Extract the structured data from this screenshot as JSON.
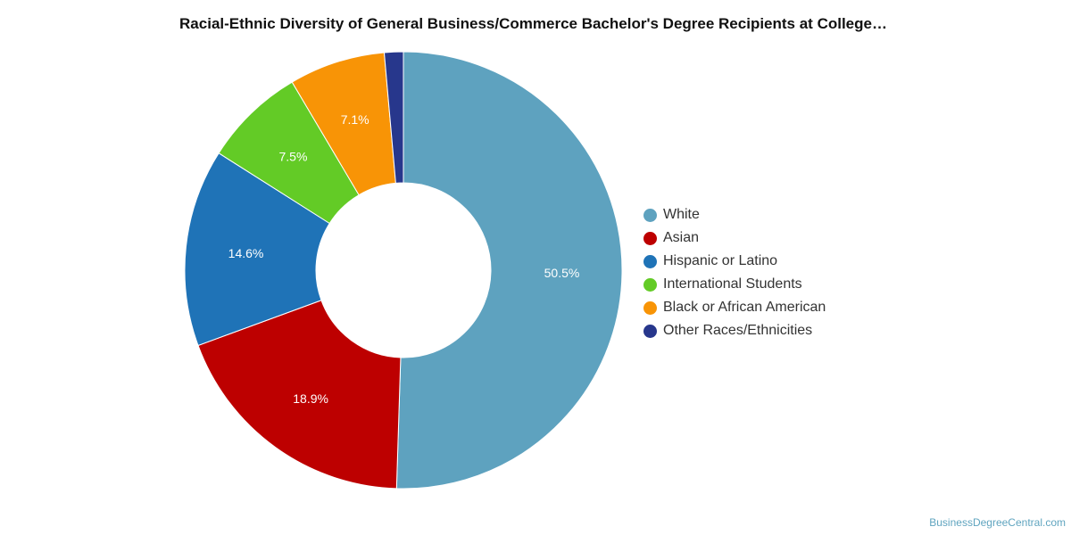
{
  "chart_data": {
    "type": "pie",
    "variant": "donut",
    "title": "Racial-Ethnic Diversity of General Business/Commerce Bachelor's Degree Recipients at College…",
    "legend_position": "right",
    "series": [
      {
        "name": "White",
        "value": 50.5,
        "label": "50.5%",
        "color": "#5ea2bf"
      },
      {
        "name": "Asian",
        "value": 18.9,
        "label": "18.9%",
        "color": "#bd0000"
      },
      {
        "name": "Hispanic or Latino",
        "value": 14.6,
        "label": "14.6%",
        "color": "#1f73b7"
      },
      {
        "name": "International Students",
        "value": 7.5,
        "label": "7.5%",
        "color": "#63cb26"
      },
      {
        "name": "Black or African American",
        "value": 7.1,
        "label": "7.1%",
        "color": "#f89406"
      },
      {
        "name": "Other Races/Ethnicities",
        "value": 1.4,
        "label": "",
        "color": "#27378c"
      }
    ]
  },
  "footer": {
    "credit": "BusinessDegreeCentral.com"
  }
}
